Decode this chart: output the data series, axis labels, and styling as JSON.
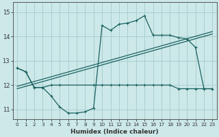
{
  "xlabel": "Humidex (Indice chaleur)",
  "bg_color": "#cce8e8",
  "grid_color": "#aacfcf",
  "line_color": "#1a6060",
  "xlim": [
    -0.5,
    23.5
  ],
  "ylim": [
    10.6,
    15.4
  ],
  "yticks": [
    11,
    12,
    13,
    14,
    15
  ],
  "xticks": [
    0,
    1,
    2,
    3,
    4,
    5,
    6,
    7,
    8,
    9,
    10,
    11,
    12,
    13,
    14,
    15,
    16,
    17,
    18,
    19,
    20,
    21,
    22,
    23
  ],
  "main_x": [
    0,
    1,
    2,
    3,
    4,
    5,
    6,
    7,
    8,
    9,
    10,
    11,
    12,
    13,
    14,
    15,
    16,
    17,
    18,
    19,
    20,
    21,
    22,
    23
  ],
  "main_y": [
    12.7,
    12.55,
    11.9,
    11.9,
    11.55,
    11.1,
    10.85,
    10.85,
    10.9,
    11.05,
    14.45,
    14.25,
    14.5,
    14.55,
    14.65,
    14.85,
    14.05,
    14.05,
    14.05,
    13.95,
    13.9,
    13.55,
    11.85,
    11.85
  ],
  "flat_x": [
    0,
    1,
    2,
    3,
    4,
    5,
    9,
    10,
    11,
    12,
    13,
    14,
    15,
    16,
    17,
    18,
    19,
    20,
    21,
    22,
    23
  ],
  "flat_y": [
    12.7,
    12.55,
    11.9,
    11.9,
    12.0,
    12.0,
    12.0,
    12.0,
    12.0,
    12.0,
    12.0,
    12.0,
    12.0,
    12.0,
    12.0,
    12.0,
    11.85,
    11.85,
    11.85,
    11.85,
    11.85
  ],
  "trend1_x": [
    0,
    23
  ],
  "trend1_y": [
    11.85,
    14.1
  ],
  "trend2_x": [
    0,
    23
  ],
  "trend2_y": [
    11.95,
    14.2
  ]
}
